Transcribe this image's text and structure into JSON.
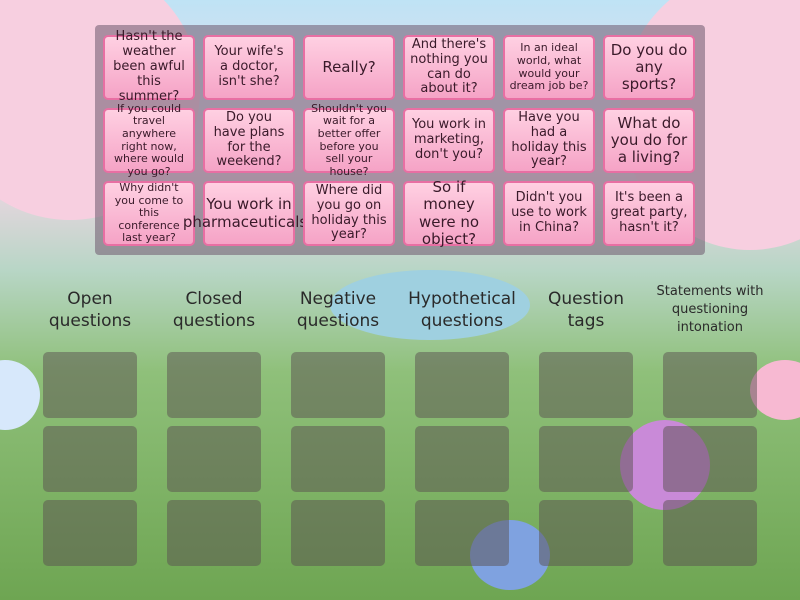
{
  "cards": [
    "Hasn't the weather been awful this summer?",
    "Your wife's a doctor, isn't she?",
    "Really?",
    "And there's nothing you can do about it?",
    "In an ideal world, what would your dream job be?",
    "Do you do any sports?",
    "If you could travel anywhere right now, where would you go?",
    "Do you have plans for the weekend?",
    "Shouldn't you wait for a better offer before you sell your house?",
    "You work in marketing, don't you?",
    "Have you had a holiday this year?",
    "What do you do for a living?",
    "Why didn't you come to this conference last year?",
    "You work in pharmaceuticals?",
    "Where did you go on holiday this year?",
    "So if money were no object?",
    "Didn't you use to work in China?",
    "It's been a great party, hasn't it?"
  ],
  "categories": [
    "Open questions",
    "Closed questions",
    "Negative questions",
    "Hypothetical questions",
    "Question tags",
    "Statements with questioning intonation"
  ]
}
